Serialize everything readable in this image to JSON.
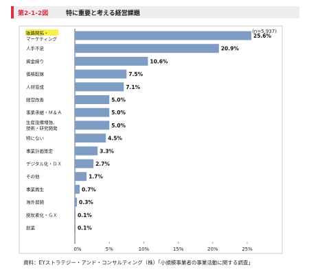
{
  "figure": {
    "number": "第2-1-2図",
    "title": "特に重要と考える経営課題"
  },
  "source_note": "資料：EYストラテジー・アンド・コンサルティング（株）「小規模事業者の事業活動に関する調査」",
  "chart_data": {
    "type": "bar",
    "orientation": "horizontal",
    "n_label": "(n=5,937)",
    "categories": [
      [
        "販路開拓・",
        "マーケティング"
      ],
      [
        "人手不足"
      ],
      [
        "資金繰り"
      ],
      [
        "価格転嫁"
      ],
      [
        "人材育成"
      ],
      [
        "経営改善"
      ],
      [
        "事業承継・Ｍ＆Ａ"
      ],
      [
        "生産設備増強、",
        "技術・研究開発"
      ],
      [
        "特にない"
      ],
      [
        "事業計画策定"
      ],
      [
        "デジタル化・ＤＸ"
      ],
      [
        "その他"
      ],
      [
        "事業再生"
      ],
      [
        "海外展開"
      ],
      [
        "脱炭素化・ＧＸ"
      ],
      [
        "創業"
      ]
    ],
    "values": [
      25.6,
      20.9,
      10.6,
      7.5,
      7.1,
      5.0,
      5.0,
      5.0,
      4.5,
      3.3,
      2.7,
      1.7,
      0.7,
      0.3,
      0.1,
      0.1
    ],
    "value_labels": [
      "25.6%",
      "20.9%",
      "10.6%",
      "7.5%",
      "7.1%",
      "5.0%",
      "5.0%",
      "5.0%",
      "4.5%",
      "3.3%",
      "2.7%",
      "1.7%",
      "0.7%",
      "0.3%",
      "0.1%",
      "0.1%"
    ],
    "xlim": [
      0,
      25
    ],
    "xticks": [
      "0%",
      "5%",
      "10%",
      "15%",
      "20%",
      "25%"
    ],
    "bar_color": "#7f9cc4",
    "highlight_color": "#f6f24a",
    "highlight_index": 0,
    "grid": false
  }
}
